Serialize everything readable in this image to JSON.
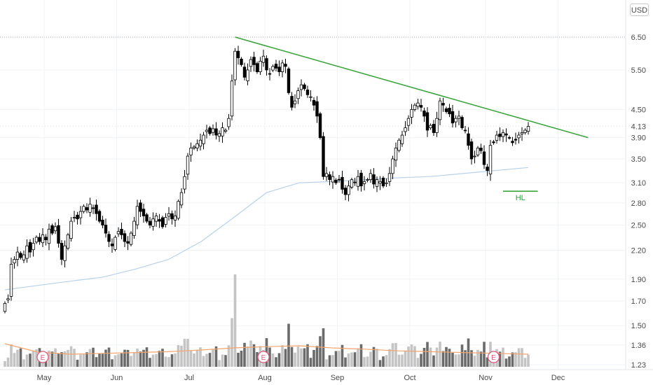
{
  "currency": "USD",
  "colors": {
    "up_candle": "#ffffff",
    "down_candle": "#000000",
    "volume_up": "#c4c4c4",
    "volume_down": "#6b6b6b",
    "moving_average": "#b7d2ea",
    "volume_average": "#f4a46b",
    "trendline": "#3da53f",
    "earnings": "#e0557a",
    "grid": "#f0f3f6"
  },
  "chart_data": {
    "type": "candlestick",
    "scale": "log",
    "ylim": [
      1.2,
      7.5
    ],
    "y_ticks": [
      "6.50",
      "5.50",
      "4.50",
      "4.13",
      "3.90",
      "3.50",
      "3.10",
      "2.80",
      "2.50",
      "2.20",
      "1.90",
      "1.70",
      "1.50",
      "1.36",
      "1.23"
    ],
    "x_ticks": [
      "May",
      "Jun",
      "Jul",
      "Aug",
      "Sep",
      "Oct",
      "Nov",
      "Dec"
    ],
    "last_price": "4.13",
    "grid": true,
    "series": [
      {
        "kind": "price",
        "closes": [
          1.68,
          1.72,
          2.05,
          2.1,
          2.18,
          2.12,
          2.15,
          2.25,
          2.18,
          2.28,
          2.35,
          2.3,
          2.38,
          2.32,
          2.45,
          2.4,
          2.48,
          2.28,
          2.1,
          2.25,
          2.38,
          2.55,
          2.6,
          2.58,
          2.68,
          2.75,
          2.7,
          2.78,
          2.72,
          2.65,
          2.55,
          2.5,
          2.4,
          2.3,
          2.25,
          2.35,
          2.42,
          2.38,
          2.3,
          2.28,
          2.4,
          2.55,
          2.75,
          2.68,
          2.62,
          2.55,
          2.5,
          2.58,
          2.62,
          2.55,
          2.48,
          2.6,
          2.65,
          2.58,
          2.62,
          2.82,
          2.95,
          3.2,
          3.55,
          3.7,
          3.72,
          3.78,
          3.85,
          3.95,
          4.05,
          3.98,
          4.08,
          3.95,
          3.98,
          4.1,
          4.05,
          4.3,
          5.2,
          6.05,
          5.85,
          5.65,
          5.3,
          5.5,
          5.8,
          5.65,
          5.45,
          5.75,
          5.9,
          5.5,
          5.4,
          5.6,
          5.55,
          5.45,
          5.7,
          5.6,
          4.9,
          4.55,
          4.7,
          4.95,
          5.1,
          5.0,
          4.85,
          4.8,
          4.6,
          4.35,
          3.9,
          3.2,
          3.25,
          3.15,
          3.2,
          3.1,
          3.15,
          3.0,
          2.92,
          3.05,
          3.15,
          3.1,
          3.2,
          3.05,
          3.12,
          3.15,
          3.25,
          3.08,
          3.15,
          3.12,
          3.05,
          3.1,
          3.25,
          3.5,
          3.7,
          3.85,
          3.95,
          4.1,
          4.3,
          4.5,
          4.6,
          4.65,
          4.55,
          4.35,
          4.05,
          4.15,
          4.0,
          4.3,
          4.7,
          4.6,
          4.45,
          4.4,
          4.2,
          4.3,
          4.35,
          4.1,
          4.05,
          3.75,
          3.5,
          3.55,
          3.7,
          3.65,
          3.4,
          3.3,
          3.75,
          3.8,
          3.95,
          3.92,
          4.0,
          3.95,
          3.9,
          3.8,
          3.85,
          3.95,
          4.0,
          4.05,
          4.13
        ],
        "moving_average": [
          1.8,
          1.84,
          1.88,
          1.92,
          2.0,
          2.1,
          2.3,
          2.6,
          2.95,
          3.1,
          3.12,
          3.15,
          3.18,
          3.2,
          3.25,
          3.3,
          3.35
        ]
      },
      {
        "kind": "volume",
        "peak_day": 73,
        "volume_average_trend": [
          0.55,
          0.35,
          0.3,
          0.32,
          0.34,
          0.36,
          0.4,
          0.45,
          0.48,
          0.5,
          0.45,
          0.42,
          0.38,
          0.36,
          0.34,
          0.32,
          0.3
        ]
      }
    ],
    "annotations": [
      {
        "type": "trendline",
        "from": [
          73,
          6.5
        ],
        "to": [
          185,
          3.9
        ]
      },
      {
        "type": "support",
        "label": "HL",
        "price": 2.97,
        "from": [
          158,
          2.97
        ],
        "to": [
          169,
          2.97
        ]
      },
      {
        "type": "earnings",
        "label": "E",
        "day": 12
      },
      {
        "type": "earnings",
        "label": "E",
        "day": 82
      },
      {
        "type": "earnings",
        "label": "E",
        "day": 155
      }
    ]
  }
}
